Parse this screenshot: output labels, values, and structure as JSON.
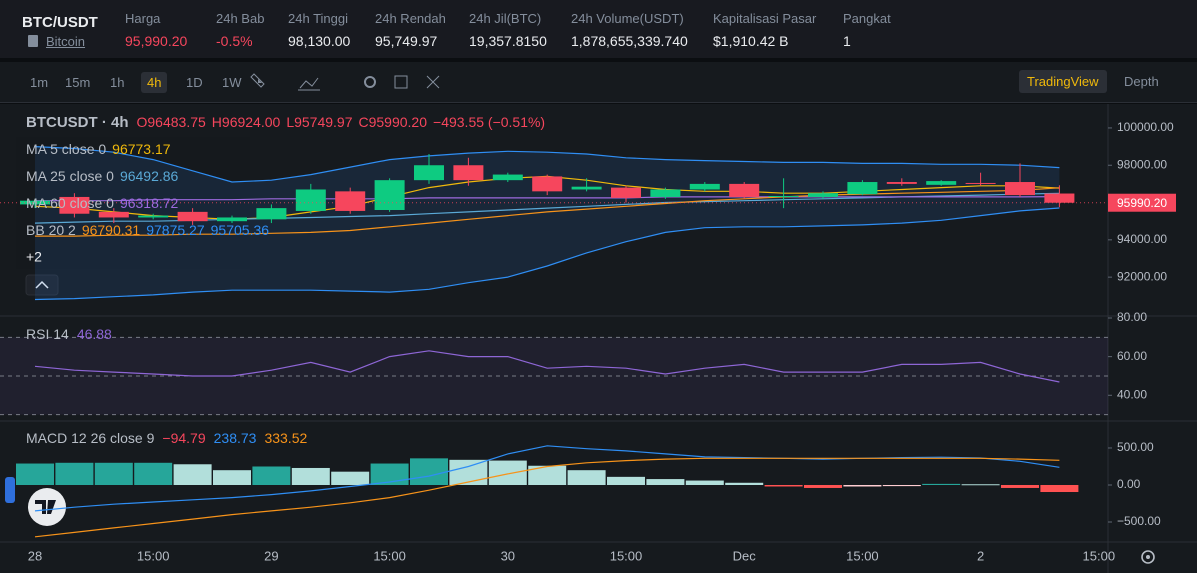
{
  "header": {
    "symbol": "BTC/USDT",
    "name": "Bitcoin",
    "stats": [
      {
        "label": "Harga",
        "value": "95,990.20",
        "color": "#f6465d"
      },
      {
        "label": "24h Bab",
        "value": "-0.5%",
        "color": "#f6465d"
      },
      {
        "label": "24h Tinggi",
        "value": "98,130.00",
        "color": "#eaecef"
      },
      {
        "label": "24h Rendah",
        "value": "95,749.97",
        "color": "#eaecef"
      },
      {
        "label": "24h Jil(BTC)",
        "value": "19,357.8150",
        "color": "#eaecef"
      },
      {
        "label": "24h Volume(USDT)",
        "value": "1,878,655,339.740",
        "color": "#eaecef"
      },
      {
        "label": "Kapitalisasi Pasar",
        "value": "$1,910.42 B",
        "color": "#eaecef"
      },
      {
        "label": "Pangkat",
        "value": "1",
        "color": "#eaecef"
      }
    ]
  },
  "toolbar": {
    "intervals": [
      "1m",
      "15m",
      "1h",
      "4h",
      "1D",
      "1W"
    ],
    "active": "4h",
    "views": [
      "TradingView",
      "Depth"
    ],
    "active_view": "TradingView"
  },
  "chart_data": [
    {
      "type": "candlestick",
      "title": "BTCUSDT · 4h",
      "ohlc_legend": [
        {
          "text": "O96483.75",
          "color": "#f6465d"
        },
        {
          "text": "H96924.00",
          "color": "#f6465d"
        },
        {
          "text": "L95749.97",
          "color": "#f6465d"
        },
        {
          "text": "C95990.20",
          "color": "#f6465d"
        },
        {
          "text": "−493.55 (−0.51%)",
          "color": "#f6465d"
        }
      ],
      "up_color": "#0ecb81",
      "down_color": "#f6465d",
      "candles": {
        "open": [
          95900,
          96300,
          95500,
          95200,
          95500,
          95000,
          95100,
          95550,
          96600,
          95600,
          97200,
          98000,
          97200,
          97400,
          96700,
          96800,
          96300,
          96700,
          97000,
          96300,
          96300,
          96450,
          97100,
          96950,
          97050,
          97100,
          96483.75
        ],
        "high": [
          96200,
          96500,
          95700,
          95400,
          95700,
          95300,
          95900,
          97000,
          96800,
          97300,
          98600,
          98400,
          97600,
          97500,
          97300,
          96900,
          96800,
          97100,
          97100,
          97300,
          96600,
          97200,
          97300,
          97200,
          97600,
          98100,
          96924
        ],
        "low": [
          95700,
          95200,
          94900,
          95100,
          94800,
          94900,
          94900,
          95400,
          95400,
          95500,
          97000,
          96900,
          97100,
          96400,
          96600,
          96000,
          96200,
          96600,
          96200,
          95700,
          96200,
          96400,
          96900,
          96900,
          96900,
          96300,
          95749.97
        ],
        "close": [
          96100,
          95400,
          95200,
          95300,
          95000,
          95200,
          95700,
          96700,
          95550,
          97200,
          98000,
          97200,
          97500,
          96600,
          96850,
          96250,
          96700,
          97000,
          96300,
          96350,
          96500,
          97100,
          97000,
          97150,
          97000,
          96400,
          95990.2
        ]
      },
      "indicators": [
        {
          "name": "MA 5 close 0",
          "series": [
            {
              "label": "96773.17",
              "color": "#f0b90b",
              "values": [
                95800,
                95700,
                95500,
                95300,
                95200,
                95100,
                95200,
                95500,
                95800,
                96300,
                96800,
                97100,
                97300,
                97400,
                97200,
                96900,
                96700,
                96600,
                96600,
                96500,
                96500,
                96600,
                96700,
                96800,
                96900,
                96900,
                96773.17
              ]
            }
          ]
        },
        {
          "name": "MA 25 close 0",
          "series": [
            {
              "label": "96492.86",
              "color": "#5aa9d6",
              "values": [
                94900,
                94950,
                95000,
                95000,
                95050,
                95100,
                95150,
                95200,
                95250,
                95300,
                95400,
                95500,
                95600,
                95700,
                95800,
                95900,
                96000,
                96050,
                96100,
                96150,
                96200,
                96250,
                96300,
                96350,
                96400,
                96450,
                96492.86
              ]
            }
          ]
        },
        {
          "name": "MA 60 close 0",
          "series": [
            {
              "label": "96318.72",
              "color": "#9c6ade",
              "values": [
                96100,
                96100,
                96100,
                96150,
                96150,
                96150,
                96200,
                96200,
                96200,
                96200,
                96250,
                96250,
                96250,
                96250,
                96250,
                96250,
                96300,
                96300,
                96300,
                96300,
                96300,
                96300,
                96300,
                96300,
                96300,
                96300,
                96318.72
              ]
            }
          ]
        },
        {
          "name": "BB 20 2",
          "band": true,
          "series": [
            {
              "label": "96790.31",
              "color": "#f7931a",
              "values": [
                94200,
                94200,
                94250,
                94250,
                94300,
                94300,
                94350,
                94400,
                94500,
                94700,
                94900,
                95100,
                95300,
                95500,
                95650,
                95800,
                95950,
                96100,
                96200,
                96300,
                96400,
                96450,
                96500,
                96550,
                96600,
                96650,
                96790.31
              ]
            },
            {
              "label": "97875.27",
              "color": "#2f8ef4",
              "values": [
                99000,
                98900,
                98700,
                98300,
                97700,
                97100,
                97200,
                97500,
                97900,
                98300,
                98500,
                98650,
                98750,
                98700,
                98600,
                98400,
                98300,
                98250,
                98200,
                98150,
                98150,
                98100,
                98100,
                98050,
                98050,
                98000,
                97875.27
              ]
            },
            {
              "label": "95705.36",
              "color": "#2f8ef4",
              "values": [
                90800,
                90850,
                90950,
                91050,
                91200,
                91300,
                91300,
                91300,
                91250,
                91200,
                91350,
                91700,
                92000,
                92600,
                93300,
                93900,
                94400,
                94650,
                94700,
                94700,
                94750,
                94800,
                94900,
                95050,
                95300,
                95550,
                95705.36
              ]
            }
          ]
        }
      ],
      "more": "+2",
      "last_price": {
        "value": 95990.2,
        "label": "95990.20"
      },
      "ylim": [
        89970,
        101230
      ],
      "yticks": [
        {
          "value": 100000,
          "label": "100000.00"
        },
        {
          "value": 98000,
          "label": "98000.00"
        },
        {
          "value": 96000,
          "label": "96000.00"
        },
        {
          "value": 94000,
          "label": "94000.00"
        },
        {
          "value": 92000,
          "label": "92000.00"
        }
      ],
      "time_labels": [
        "28",
        "15:00",
        "29",
        "15:00",
        "30",
        "15:00",
        "Dec",
        "15:00",
        "2",
        "15:00"
      ]
    },
    {
      "type": "line",
      "indicators": [
        {
          "name": "RSI 14",
          "series": [
            {
              "label": "46.88",
              "color": "#8e66d6",
              "values": [
                55,
                53,
                52,
                51,
                50,
                50,
                53,
                57,
                52,
                60,
                63,
                60,
                60,
                54,
                55,
                54,
                51,
                54,
                56,
                52,
                52,
                52,
                56,
                56,
                57,
                51,
                46.88
              ]
            }
          ]
        }
      ],
      "bands": [
        70,
        50,
        30
      ],
      "ylim": [
        27.2,
        80
      ],
      "yticks": [
        {
          "value": 80,
          "label": "80.00"
        },
        {
          "value": 60,
          "label": "60.00"
        },
        {
          "value": 40,
          "label": "40.00"
        }
      ]
    },
    {
      "type": "macd",
      "indicators": [
        {
          "name": "MACD 12 26 close 9",
          "series": [
            {
              "kind": "histogram",
              "label": "−94.79",
              "color": "#f6465d",
              "colors": [
                "#26a69a",
                "#b2dfdb",
                "#ffcdd2",
                "#ff5252"
              ],
              "values": [
                290,
                300,
                300,
                300,
                280,
                200,
                250,
                230,
                180,
                290,
                360,
                340,
                330,
                260,
                200,
                110,
                80,
                60,
                30,
                -20,
                -40,
                -20,
                -15,
                15,
                10,
                -40,
                -94.79
              ]
            },
            {
              "kind": "line",
              "label": "238.73",
              "color": "#2f8ef4",
              "values": [
                -350,
                -300,
                -260,
                -230,
                -200,
                -170,
                -130,
                -80,
                -20,
                40,
                120,
                250,
                420,
                530,
                490,
                460,
                420,
                380,
                370,
                360,
                350,
                360,
                370,
                375,
                365,
                320,
                238.73
              ]
            },
            {
              "kind": "line",
              "label": "333.52",
              "color": "#f7931a",
              "values": [
                -700,
                -640,
                -580,
                -520,
                -460,
                -400,
                -350,
                -300,
                -240,
                -170,
                -70,
                40,
                150,
                250,
                300,
                330,
                350,
                360,
                360,
                360,
                360,
                360,
                360,
                360,
                360,
                350,
                333.52
              ]
            }
          ]
        }
      ],
      "ylim": [
        -743,
        851
      ],
      "yticks": [
        {
          "value": 500,
          "label": "500.00"
        },
        {
          "value": 0,
          "label": "0.00"
        },
        {
          "value": -500,
          "label": "−500.00"
        }
      ]
    }
  ]
}
